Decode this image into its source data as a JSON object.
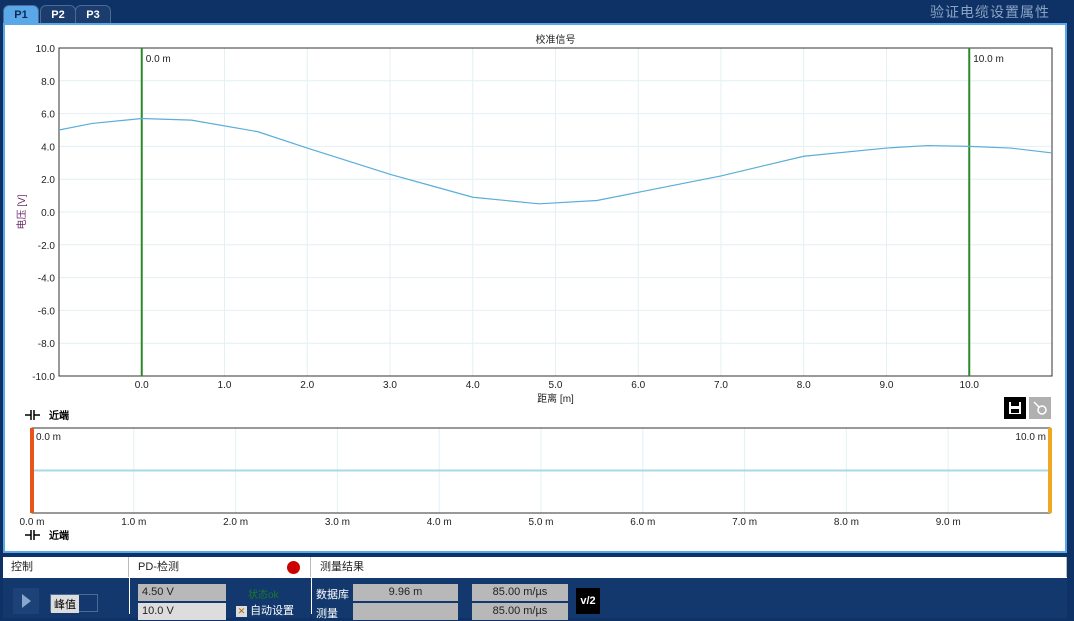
{
  "tabs": [
    "P1",
    "P2",
    "P3"
  ],
  "active_tab": "P1",
  "window_title": "验证电缆设置属性",
  "chart_data": [
    {
      "type": "line",
      "title": "校准信号",
      "xlabel": "距离 [m]",
      "ylabel": "电压 [V]",
      "xlim": [
        -1.0,
        11.0
      ],
      "ylim": [
        -10.0,
        10.0
      ],
      "xticks": [
        "0.0",
        "1.0",
        "2.0",
        "3.0",
        "4.0",
        "5.0",
        "6.0",
        "7.0",
        "8.0",
        "9.0",
        "10.0"
      ],
      "yticks": [
        "10.0",
        "8.0",
        "6.0",
        "4.0",
        "2.0",
        "0.0",
        "-2.0",
        "-4.0",
        "-6.0",
        "-8.0",
        "-10.0"
      ],
      "grid": true,
      "series": [
        {
          "color": "#5aaed8",
          "x": [
            -1.0,
            -0.6,
            0,
            0.6,
            1.4,
            2.0,
            3.0,
            3.5,
            4.0,
            4.8,
            5.5,
            6.0,
            7.0,
            7.5,
            8.0,
            9.0,
            9.5,
            10.0,
            10.5,
            11.0
          ],
          "y": [
            5.0,
            5.4,
            5.7,
            5.6,
            4.9,
            3.9,
            2.3,
            1.6,
            0.9,
            0.5,
            0.7,
            1.2,
            2.2,
            2.8,
            3.4,
            3.9,
            4.05,
            4.0,
            3.9,
            3.6
          ]
        }
      ],
      "markers": [
        {
          "x": 0.0,
          "label": "0.0 m",
          "color": "#2a8a2a"
        },
        {
          "x": 10.0,
          "label": "10.0 m",
          "color": "#2a8a2a"
        }
      ]
    },
    {
      "type": "line",
      "xlim": [
        0,
        10
      ],
      "xticks": [
        "0.0 m",
        "1.0 m",
        "2.0 m",
        "3.0 m",
        "4.0 m",
        "5.0 m",
        "6.0 m",
        "7.0 m",
        "8.0 m",
        "9.0 m"
      ],
      "markers": [
        {
          "x": 0.0,
          "label": "0.0 m",
          "color": "#e8541c"
        },
        {
          "x": 10.0,
          "label": "10.0 m",
          "color": "#f0a820"
        }
      ],
      "series": [
        {
          "color": "#a8d8e8",
          "level": 0.5
        }
      ]
    }
  ],
  "near_end_label": "近端",
  "toolbar": {
    "save": "save-icon",
    "probe": "probe-icon"
  },
  "bottom": {
    "control": {
      "header": "控制",
      "mode": "峰值"
    },
    "pd": {
      "header": "PD-检测",
      "voltage": "4.50 V",
      "range": "10.0 V",
      "status": "状态ok",
      "auto": "自动设置",
      "auto_checked": true,
      "indicator_color": "#cc0000"
    },
    "results": {
      "header": "测量结果",
      "row1_label": "数据库",
      "row1_len": "9.96 m",
      "row1_vel": "85.00 m/µs",
      "row2_label": "测量",
      "row2_len": "",
      "row2_vel": "85.00 m/µs",
      "v2": "v/2"
    }
  }
}
